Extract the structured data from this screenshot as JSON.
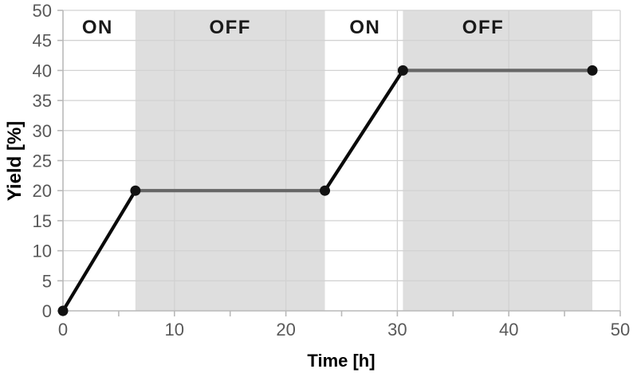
{
  "chart_data": {
    "type": "line",
    "title": "",
    "xlabel": "Time [h]",
    "ylabel": "Yield [%]",
    "xlim": [
      0,
      50
    ],
    "ylim": [
      0,
      50
    ],
    "x_major_ticks": [
      0,
      10,
      20,
      30,
      40,
      50
    ],
    "x_minor_ticks": [
      5,
      15,
      25,
      35,
      45
    ],
    "y_ticks": [
      0,
      5,
      10,
      15,
      20,
      25,
      30,
      35,
      40,
      45,
      50
    ],
    "grid": true,
    "legend": "none",
    "points": [
      {
        "x": 0,
        "y": 0
      },
      {
        "x": 6.5,
        "y": 20
      },
      {
        "x": 23.5,
        "y": 20
      },
      {
        "x": 30.5,
        "y": 40
      },
      {
        "x": 47.5,
        "y": 40
      }
    ],
    "segments": [
      {
        "x1": 0,
        "y1": 0,
        "x2": 6.5,
        "y2": 20,
        "state": "on"
      },
      {
        "x1": 6.5,
        "y1": 20,
        "x2": 23.5,
        "y2": 20,
        "state": "off"
      },
      {
        "x1": 23.5,
        "y1": 20,
        "x2": 30.5,
        "y2": 40,
        "state": "on"
      },
      {
        "x1": 30.5,
        "y1": 40,
        "x2": 47.5,
        "y2": 40,
        "state": "off"
      }
    ],
    "regions": [
      {
        "label": "ON",
        "from": 0,
        "to": 6.5,
        "shaded": false,
        "label_x": 3.1
      },
      {
        "label": "OFF",
        "from": 6.5,
        "to": 23.5,
        "shaded": true,
        "label_x": 15.0
      },
      {
        "label": "ON",
        "from": 23.5,
        "to": 30.5,
        "shaded": false,
        "label_x": 27.1
      },
      {
        "label": "OFF",
        "from": 30.5,
        "to": 47.5,
        "shaded": true,
        "label_x": 37.7
      }
    ],
    "colors": {
      "on_line": "#0a0a0a",
      "off_line": "#666666",
      "marker": "#121212",
      "region_shade": "#dedede",
      "gridline": "#d2d2d2",
      "axis_line": "#b9b9b9",
      "tick_label": "#595959",
      "axis_title": "#0a0a0a",
      "region_label": "#1a1a1a"
    }
  }
}
